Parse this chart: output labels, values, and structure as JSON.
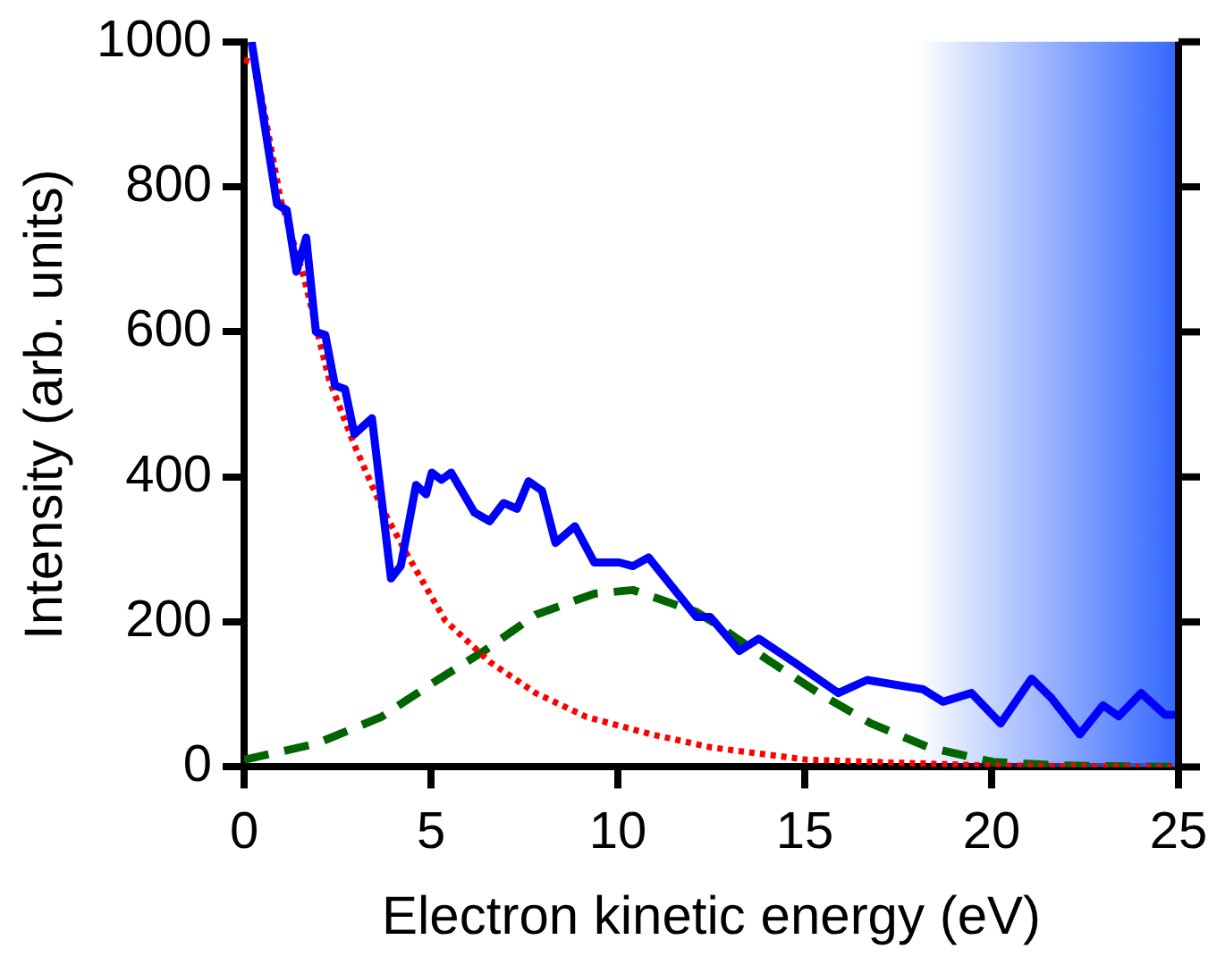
{
  "chart_data": {
    "type": "line",
    "xlabel": "Electron kinetic energy (eV)",
    "ylabel": "Intensity (arb. units)",
    "xlim": [
      0,
      25
    ],
    "xticks": [
      0,
      5,
      10,
      15,
      20,
      25
    ],
    "ylim": [
      0,
      1000
    ],
    "yticks": [
      0,
      200,
      400,
      600,
      800,
      1000
    ],
    "grid": false,
    "legend": false,
    "marker": "none",
    "bands": [
      {
        "axis": "x",
        "from": 18,
        "to": 25,
        "color": "#3366ff"
      }
    ],
    "series": [
      {
        "color": "#0000ff",
        "line_style": "solid",
        "x": [
          0.2,
          0.88,
          1.14,
          1.4,
          1.66,
          1.92,
          2.17,
          2.43,
          2.7,
          2.95,
          3.42,
          3.93,
          4.19,
          4.6,
          4.87,
          5.02,
          5.28,
          5.54,
          6.16,
          6.57,
          6.94,
          7.3,
          7.61,
          7.97,
          8.33,
          8.85,
          9.37,
          10.04,
          10.4,
          10.82,
          11.6,
          12.1,
          12.47,
          13.25,
          13.77,
          14.7,
          15.9,
          16.67,
          18.17,
          18.7,
          19.46,
          20.24,
          21.07,
          21.6,
          22.36,
          22.98,
          23.4,
          24.0,
          24.64,
          24.95
        ],
        "values": [
          1000,
          776,
          768,
          683,
          730,
          600,
          596,
          526,
          521,
          459,
          481,
          260,
          277,
          389,
          376,
          406,
          396,
          406,
          351,
          339,
          364,
          356,
          394,
          381,
          309,
          332,
          282,
          282,
          277,
          289,
          239,
          207,
          207,
          160,
          177,
          145,
          102,
          120,
          107,
          90,
          102,
          60,
          122,
          95,
          45,
          85,
          70,
          102,
          72,
          72
        ]
      },
      {
        "color": "#ff0000",
        "line_style": "dotted",
        "x": [
          0,
          0.3,
          0.98,
          1.6,
          2.28,
          2.95,
          3.67,
          4.35,
          5.38,
          6.57,
          7.8,
          9.16,
          10.9,
          12.5,
          15.06,
          19.9,
          25
        ],
        "values": [
          975,
          970,
          782,
          675,
          533,
          444,
          359,
          294,
          202,
          145,
          102,
          69,
          45,
          27,
          10,
          2,
          0
        ]
      },
      {
        "color": "#006400",
        "line_style": "dashed",
        "x": [
          0,
          1.92,
          3.67,
          5.02,
          6.42,
          7.8,
          9.37,
          10.4,
          12.1,
          12.63,
          14.03,
          15.37,
          16.77,
          18.32,
          20.03,
          21.9,
          25
        ],
        "values": [
          10,
          32,
          69,
          115,
          160,
          210,
          239,
          244,
          214,
          197,
          147,
          102,
          60,
          27,
          7,
          2,
          0
        ]
      }
    ]
  }
}
